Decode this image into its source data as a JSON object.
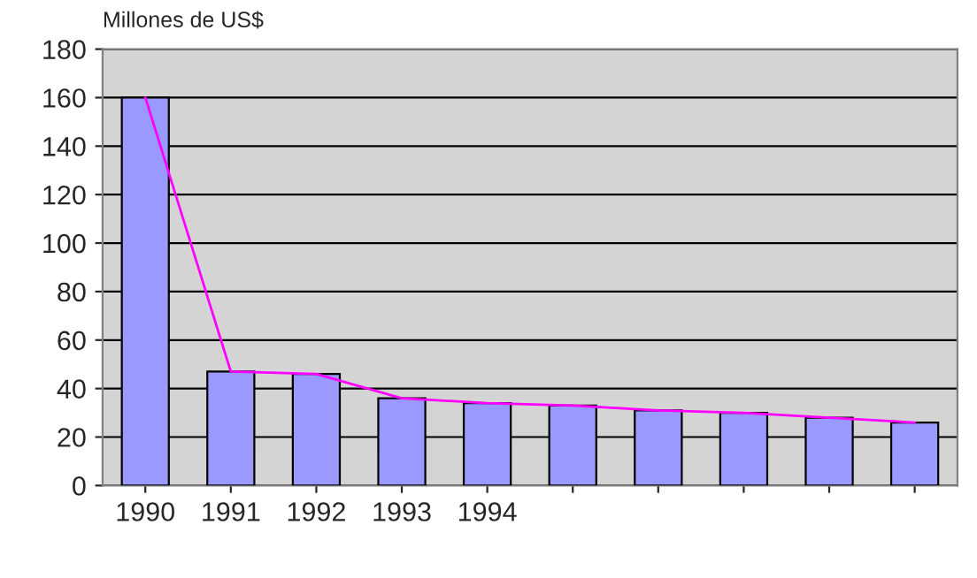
{
  "chart_data": {
    "type": "bar",
    "ylabel": "Millones de US$",
    "categories": [
      "1990",
      "1991",
      "1992",
      "1993",
      "1994",
      null,
      null,
      null,
      null,
      null
    ],
    "series": [
      {
        "color": "#9999ff",
        "values": [
          160,
          47,
          46,
          36,
          34,
          33,
          31,
          30,
          28,
          26
        ]
      },
      {
        "type": "line",
        "color": "#ff00ff",
        "values": [
          160,
          47,
          46,
          36,
          34,
          33,
          31,
          30,
          28,
          26
        ]
      }
    ],
    "ylim": [
      0,
      180
    ],
    "yticks": [
      0,
      20,
      40,
      60,
      80,
      100,
      120,
      140,
      160,
      180
    ],
    "grid": "y",
    "legend": false,
    "marker": "none"
  }
}
